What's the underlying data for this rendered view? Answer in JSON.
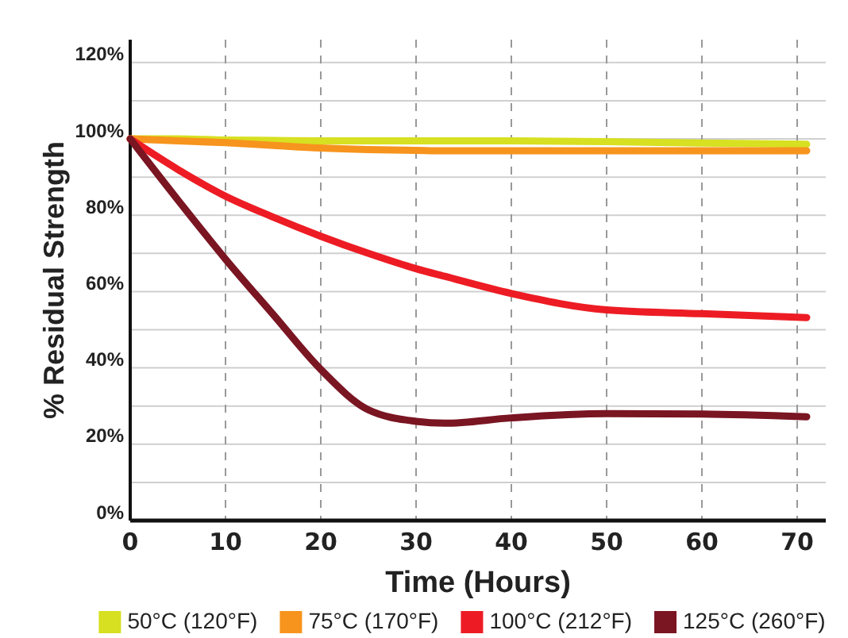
{
  "chart_data": {
    "type": "line",
    "xlabel": "Time (Hours)",
    "ylabel": "% Residual Strength",
    "x": [
      0,
      5,
      10,
      15,
      20,
      25,
      30,
      33,
      40,
      50,
      60,
      71
    ],
    "series": [
      {
        "name": "50°C (120°F)",
        "color": "#d7e021",
        "values": [
          100,
          100,
          99.7,
          99.6,
          99.5,
          99.5,
          99.5,
          99.5,
          99.5,
          99.3,
          98.9,
          98.6
        ]
      },
      {
        "name": "75°C (170°F)",
        "color": "#f7941d",
        "values": [
          100,
          99.5,
          99,
          98.3,
          97.6,
          97.2,
          97,
          96.9,
          96.9,
          96.9,
          96.9,
          96.9
        ]
      },
      {
        "name": "100°C (212°F)",
        "color": "#ed1c24",
        "values": [
          100,
          92,
          85,
          79.5,
          74.5,
          70,
          66,
          64,
          59.5,
          55.2,
          54.2,
          53.2
        ]
      },
      {
        "name": "125°C (260°F)",
        "color": "#7a1522",
        "values": [
          100,
          84,
          68.5,
          54,
          39.6,
          29,
          26,
          25.5,
          26.9,
          28,
          27.9,
          27.2
        ]
      }
    ],
    "xlim": [
      0,
      73
    ],
    "xticks": [
      0,
      10,
      20,
      30,
      40,
      50,
      60,
      70
    ],
    "ylim": [
      0,
      126
    ],
    "yticks": [
      {
        "value": 0,
        "label": "0%"
      },
      {
        "value": 10,
        "label": null
      },
      {
        "value": 20,
        "label": "20%"
      },
      {
        "value": 30,
        "label": null
      },
      {
        "value": 40,
        "label": "40%"
      },
      {
        "value": 50,
        "label": null
      },
      {
        "value": 60,
        "label": "60%"
      },
      {
        "value": 70,
        "label": null
      },
      {
        "value": 80,
        "label": "80%"
      },
      {
        "value": 90,
        "label": null
      },
      {
        "value": 100,
        "label": "100%"
      },
      {
        "value": 110,
        "label": null
      },
      {
        "value": 120,
        "label": "120%"
      }
    ],
    "grid": true,
    "legend": "bottom",
    "line_style": "solid",
    "marker": "none"
  }
}
